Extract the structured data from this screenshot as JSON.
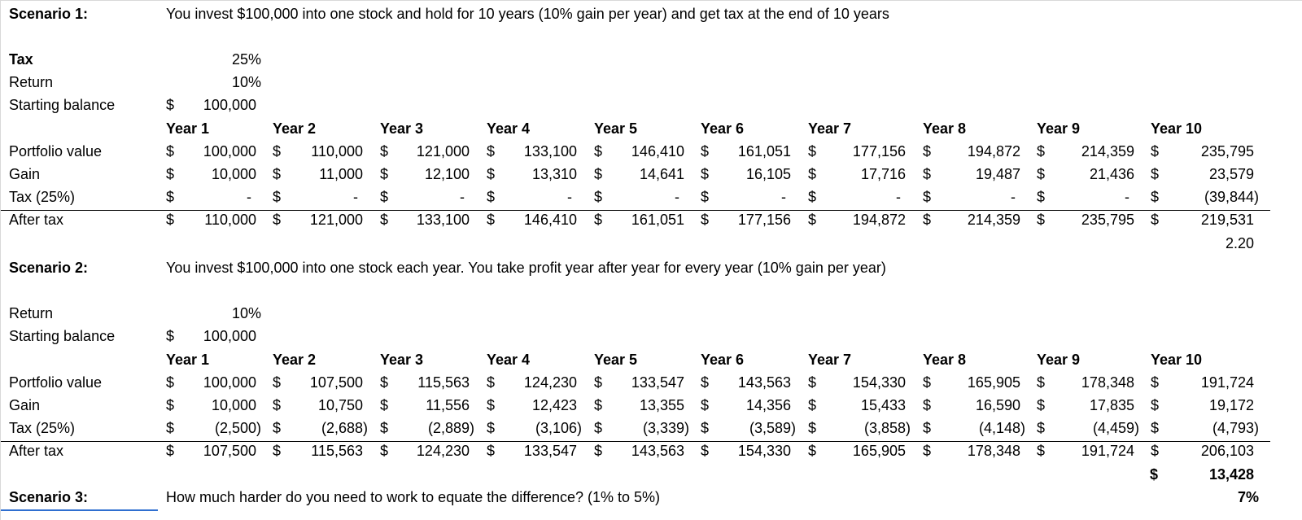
{
  "scenario1": {
    "label": "Scenario 1:",
    "description": "You invest $100,000 into one stock and hold for 10 years (10% gain per year) and get tax at the end of 10 years",
    "tax_label": "Tax",
    "tax_value": "25%",
    "return_label": "Return",
    "return_value": "10%",
    "starting_label": "Starting balance",
    "starting_currency": "$",
    "starting_value": "100,000",
    "years": [
      "Year 1",
      "Year 2",
      "Year 3",
      "Year 4",
      "Year 5",
      "Year 6",
      "Year 7",
      "Year 8",
      "Year 9",
      "Year 10"
    ],
    "rows": [
      {
        "label": "Portfolio value",
        "values": [
          "100,000",
          "110,000",
          "121,000",
          "133,100",
          "146,410",
          "161,051",
          "177,156",
          "194,872",
          "214,359",
          "235,795"
        ]
      },
      {
        "label": "Gain",
        "values": [
          "10,000",
          "11,000",
          "12,100",
          "13,310",
          "14,641",
          "16,105",
          "17,716",
          "19,487",
          "21,436",
          "23,579"
        ]
      },
      {
        "label": "Tax (25%)",
        "values": [
          "-",
          "-",
          "-",
          "-",
          "-",
          "-",
          "-",
          "-",
          "-",
          "(39,844)"
        ]
      },
      {
        "label": "After tax",
        "values": [
          "110,000",
          "121,000",
          "133,100",
          "146,410",
          "161,051",
          "177,156",
          "194,872",
          "214,359",
          "235,795",
          "219,531"
        ]
      }
    ],
    "extra_value": "2.20"
  },
  "scenario2": {
    "label": "Scenario 2:",
    "description": "You invest $100,000 into one stock each year. You take profit year after year for every year (10% gain per year)",
    "return_label": "Return",
    "return_value": "10%",
    "starting_label": "Starting balance",
    "starting_currency": "$",
    "starting_value": "100,000",
    "years": [
      "Year 1",
      "Year 2",
      "Year 3",
      "Year 4",
      "Year 5",
      "Year 6",
      "Year 7",
      "Year 8",
      "Year 9",
      "Year 10"
    ],
    "rows": [
      {
        "label": "Portfolio value",
        "values": [
          "100,000",
          "107,500",
          "115,563",
          "124,230",
          "133,547",
          "143,563",
          "154,330",
          "165,905",
          "178,348",
          "191,724"
        ]
      },
      {
        "label": "Gain",
        "values": [
          "10,000",
          "10,750",
          "11,556",
          "12,423",
          "13,355",
          "14,356",
          "15,433",
          "16,590",
          "17,835",
          "19,172"
        ]
      },
      {
        "label": "Tax (25%)",
        "values": [
          "(2,500)",
          "(2,688)",
          "(2,889)",
          "(3,106)",
          "(3,339)",
          "(3,589)",
          "(3,858)",
          "(4,148)",
          "(4,459)",
          "(4,793)"
        ]
      },
      {
        "label": "After tax",
        "values": [
          "107,500",
          "115,563",
          "124,230",
          "133,547",
          "143,563",
          "154,330",
          "165,905",
          "178,348",
          "191,724",
          "206,103"
        ]
      }
    ],
    "difference_currency": "$",
    "difference_value": "13,428"
  },
  "scenario3": {
    "label": "Scenario 3:",
    "description": "How much harder do you need to work to equate the difference? (1% to 5%)",
    "value": "7%"
  },
  "currency_symbol": "$"
}
